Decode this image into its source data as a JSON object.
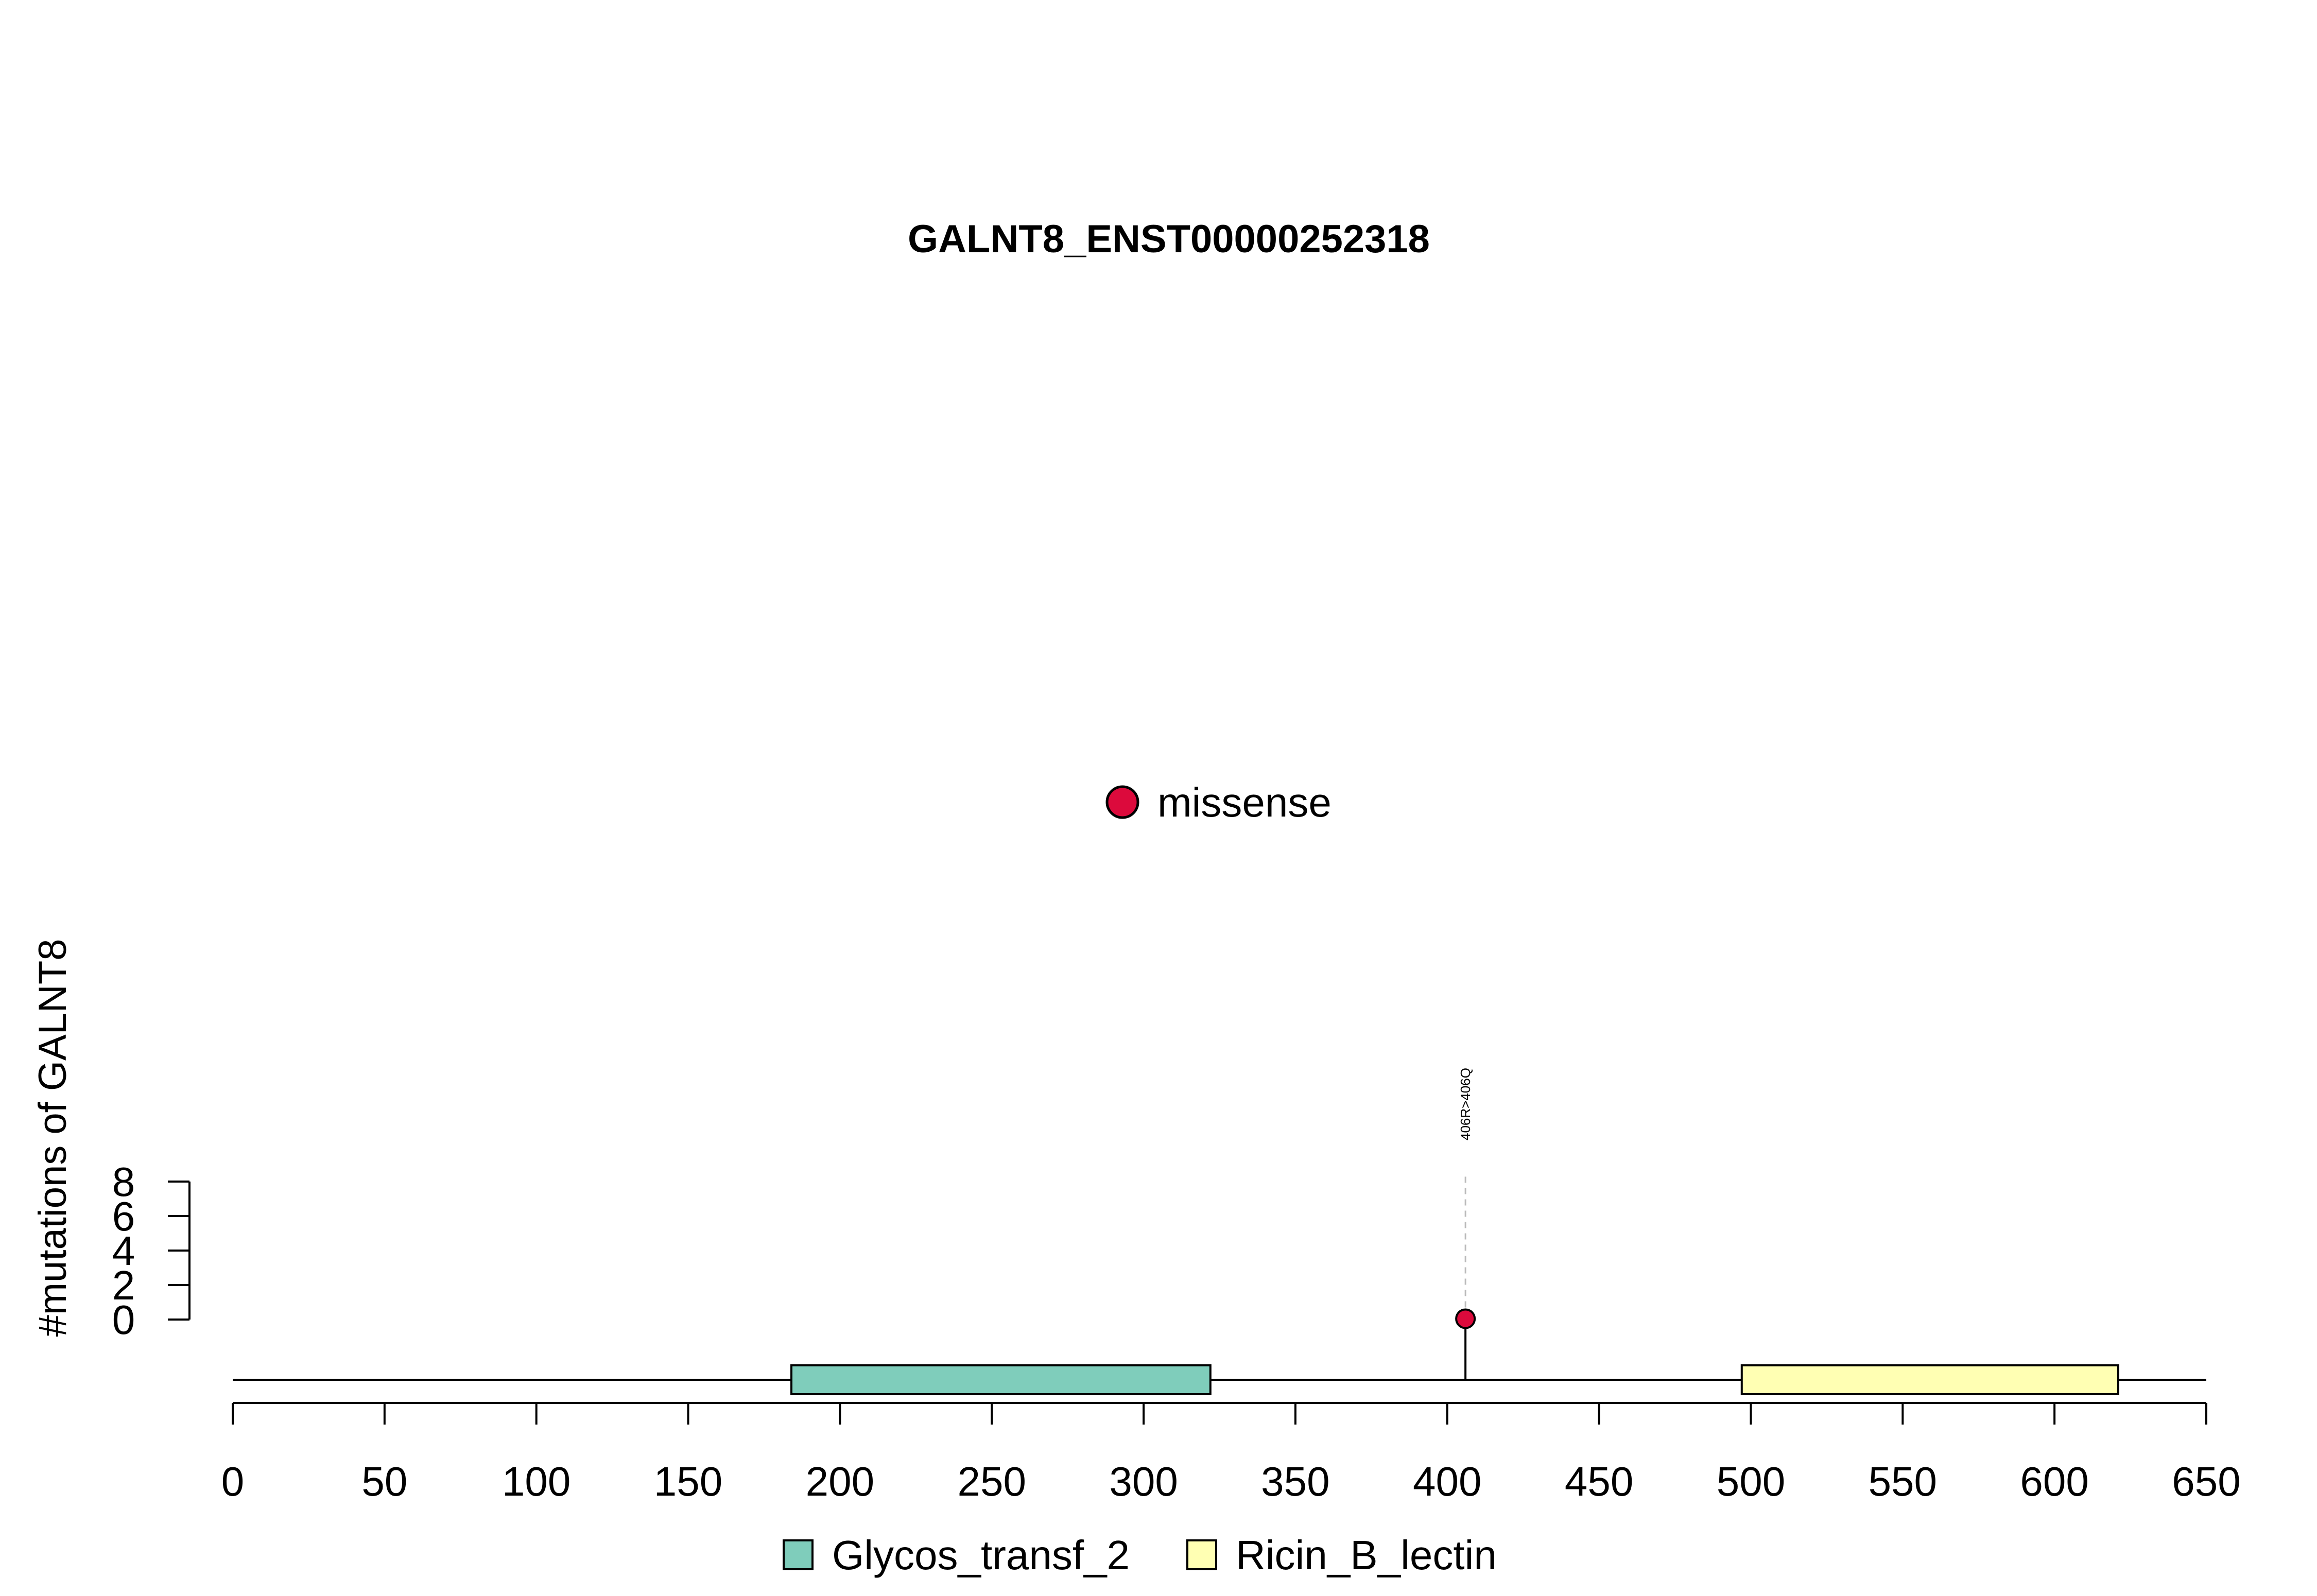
{
  "chart_data": {
    "type": "lollipop",
    "title": "GALNT8_ENST00000252318",
    "ylabel": "#mutations of GALNT8",
    "xlabel": "",
    "x_ticks": [
      0,
      50,
      100,
      150,
      200,
      250,
      300,
      350,
      400,
      450,
      500,
      550,
      600,
      650
    ],
    "y_ticks": [
      0,
      2,
      4,
      6,
      8
    ],
    "xlim": [
      0,
      650
    ],
    "ylim": [
      0,
      8
    ],
    "protein_length": 650,
    "domains": [
      {
        "name": "Glycos_transf_2",
        "start": 184,
        "end": 322,
        "color": "#7fcdbb"
      },
      {
        "name": "Ricin_B_lectin",
        "start": 497,
        "end": 621,
        "color": "#ffffb3"
      }
    ],
    "mutations": [
      {
        "position": 406,
        "count": 1,
        "label": "406R>406Q",
        "type": "missense"
      }
    ],
    "mutation_legend": [
      {
        "name": "missense",
        "color": "#dc0a3c"
      }
    ],
    "grid": false,
    "legend_placement": "top-center (mutation type) and bottom-center (domains)"
  }
}
